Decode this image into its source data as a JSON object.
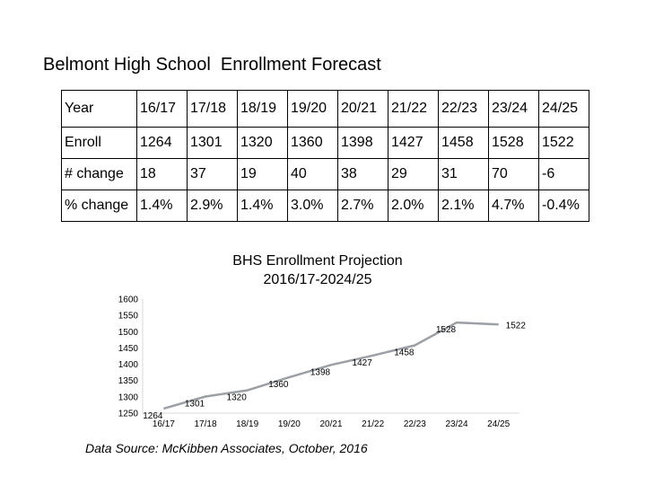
{
  "page": {
    "title": "Belmont High School  Enrollment Forecast",
    "source": "Data Source:  McKibben Associates, October, 2016"
  },
  "table": {
    "header_label": "Year",
    "years": [
      "16/17",
      "17/18",
      "18/19",
      "19/20",
      "20/21",
      "21/22",
      "22/23",
      "23/24",
      "24/25"
    ],
    "rows": [
      {
        "label": "Enroll",
        "values": [
          "1264",
          "1301",
          "1320",
          "1360",
          "1398",
          "1427",
          "1458",
          "1528",
          "1522"
        ]
      },
      {
        "label": "# change",
        "values": [
          "18",
          "37",
          "19",
          "40",
          "38",
          "29",
          "31",
          "70",
          "-6"
        ]
      },
      {
        "label": "% change",
        "values": [
          "1.4%",
          "2.9%",
          "1.4%",
          "3.0%",
          "2.7%",
          "2.0%",
          "2.1%",
          "4.7%",
          "-0.4%"
        ]
      }
    ]
  },
  "chart_data": {
    "type": "line",
    "title": "BHS Enrollment Projection",
    "subtitle": "2016/17-2024/25",
    "categories": [
      "16/17",
      "17/18",
      "18/19",
      "19/20",
      "20/21",
      "21/22",
      "22/23",
      "23/24",
      "24/25"
    ],
    "series": [
      {
        "values": [
          1264,
          1301,
          1320,
          1360,
          1398,
          1427,
          1458,
          1528,
          1522
        ]
      }
    ],
    "data_labels": [
      "1264",
      "1301",
      "1320",
      "1360",
      "1398",
      "1427",
      "1458",
      "1528",
      "1522"
    ],
    "ylim": [
      1250,
      1600
    ],
    "yticks": [
      "1250",
      "1300",
      "1350",
      "1400",
      "1450",
      "1500",
      "1550",
      "1600"
    ],
    "ytick_values": [
      1250,
      1300,
      1350,
      1400,
      1450,
      1500,
      1550,
      1600
    ],
    "grid": false,
    "legend": "none",
    "colors": {
      "line": "#9aa0a6",
      "axis": "#d9d9d9"
    }
  }
}
